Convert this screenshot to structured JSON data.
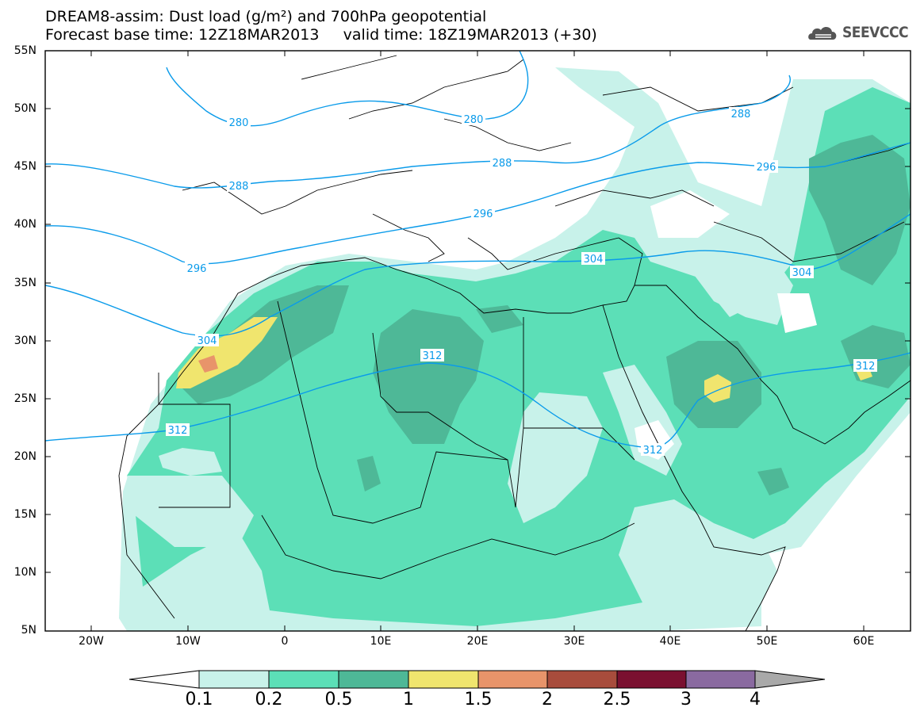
{
  "title": {
    "line1": "DREAM8-assim: Dust load (g/m²) and 700hPa geopotential",
    "line2": "Forecast base time: 12Z18MAR2013     valid time: 18Z19MAR2013 (+30)"
  },
  "logo": {
    "text": "SEEVCCC",
    "icon": "cloud-icon"
  },
  "axes": {
    "lat_labels": [
      "55N",
      "50N",
      "45N",
      "40N",
      "35N",
      "30N",
      "25N",
      "20N",
      "15N",
      "10N",
      "5N"
    ],
    "lon_labels": [
      "20W",
      "10W",
      "0",
      "10E",
      "20E",
      "30E",
      "40E",
      "50E",
      "60E"
    ]
  },
  "contour_labels": [
    "280",
    "280",
    "288",
    "288",
    "288",
    "296",
    "296",
    "296",
    "304",
    "304",
    "304",
    "312",
    "312",
    "312",
    "312"
  ],
  "colorbar": {
    "labels": [
      "0.1",
      "0.2",
      "0.5",
      "1",
      "1.5",
      "2",
      "2.5",
      "3",
      "4"
    ],
    "colors": [
      "#ffffff",
      "#c8f2ea",
      "#5cdfb7",
      "#4eb897",
      "#f0e56e",
      "#e8946a",
      "#a84c3c",
      "#7a1030",
      "#8a6aa0",
      "#a9a9a9"
    ]
  },
  "colors": {
    "contour": "#0a9bea",
    "border": "#000000"
  }
}
